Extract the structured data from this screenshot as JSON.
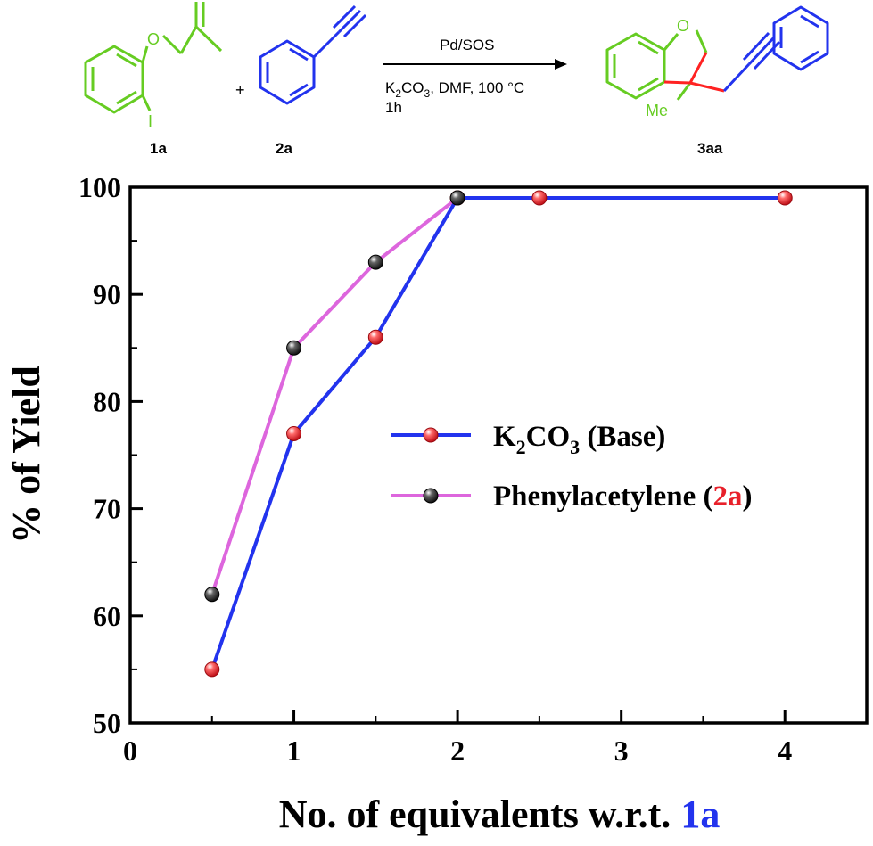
{
  "scheme": {
    "reactant_1_label": "1a",
    "reactant_2_label": "2a",
    "product_label": "3aa",
    "plus": "+",
    "catalyst": "Pd/SOS",
    "conditions_k": "K",
    "conditions_k_sub": "2",
    "conditions_co": "CO",
    "conditions_co_sub": "3",
    "conditions_rest": ", DMF, 100 °C",
    "time": "1h",
    "atom_o_1": "O",
    "atom_i": "I",
    "atom_o_2": "O",
    "methyl": "Me",
    "colors": {
      "reactant_1": "#66cc22",
      "reactant_2": "#2233ee",
      "new_bond": "#ff2222"
    }
  },
  "chart_data": {
    "type": "line",
    "xlabel_main": "No. of equivalents w.r.t. ",
    "xlabel_highlight": "1a",
    "ylabel": "% of Yield",
    "xlim": [
      0,
      4.5
    ],
    "ylim": [
      50,
      100
    ],
    "xticks": [
      0,
      1,
      2,
      3,
      4
    ],
    "yticks": [
      50,
      60,
      70,
      80,
      90,
      100
    ],
    "grid": false,
    "legend_position": "center-right",
    "series": [
      {
        "legend_k": "K",
        "legend_k_sub": "2",
        "legend_co": "CO",
        "legend_co_sub": "3",
        "legend_rest": " (Base)",
        "line_color": "#2233ee",
        "marker_color": "#e8202a",
        "x": [
          0.5,
          1,
          1.5,
          2,
          2.5,
          4
        ],
        "y": [
          55,
          77,
          86,
          99,
          99,
          99
        ]
      },
      {
        "legend_main": "Phenylacetylene (",
        "legend_highlight": "2a",
        "legend_close": ")",
        "line_color": "#dd66dd",
        "marker_color": "#222222",
        "x": [
          0.5,
          1,
          1.5,
          2
        ],
        "y": [
          62,
          85,
          93,
          99
        ]
      }
    ],
    "colors": {
      "highlight_red": "#e8202a",
      "highlight_blue": "#2233ee"
    }
  }
}
